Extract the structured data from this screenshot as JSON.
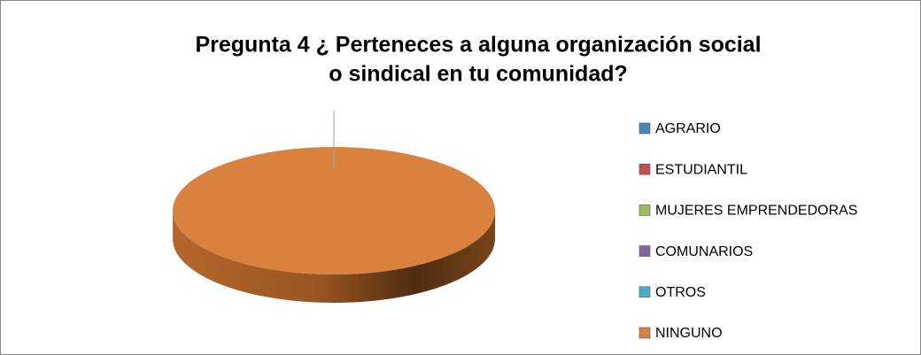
{
  "chart_data": {
    "type": "pie",
    "title": [
      "Pregunta 4 ¿ Perteneces a alguna organización social",
      "o sindical en tu comunidad?"
    ],
    "categories": [
      "AGRARIO",
      "ESTUDIANTIL",
      "MUJERES EMPRENDEDORAS",
      "COMUNARIOS",
      "OTROS",
      "NINGUNO"
    ],
    "values": [
      0,
      0,
      0,
      0,
      0,
      100
    ],
    "colors": [
      "#4f81bd",
      "#c0504d",
      "#9bbb59",
      "#8064a2",
      "#4bacc6",
      "#d9813e"
    ],
    "legend": "right"
  }
}
